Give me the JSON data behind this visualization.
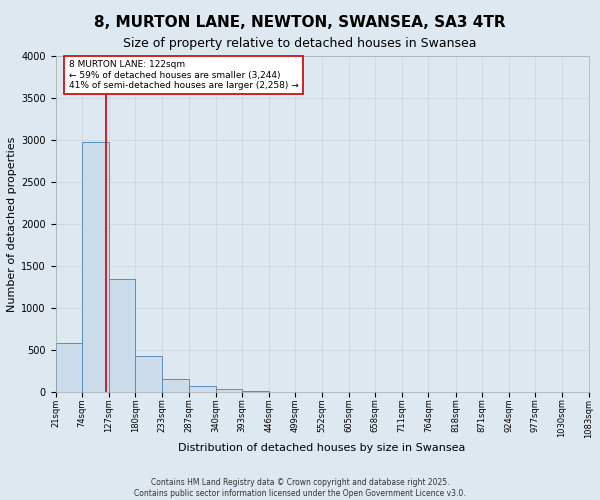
{
  "title": "8, MURTON LANE, NEWTON, SWANSEA, SA3 4TR",
  "subtitle": "Size of property relative to detached houses in Swansea",
  "xlabel": "Distribution of detached houses by size in Swansea",
  "ylabel": "Number of detached properties",
  "bin_edges": [
    21,
    74,
    127,
    180,
    233,
    287,
    340,
    393,
    446,
    499,
    552,
    605,
    658,
    711,
    764,
    818,
    871,
    924,
    977,
    1030,
    1083
  ],
  "bar_heights": [
    580,
    2980,
    1350,
    430,
    160,
    75,
    40,
    15,
    5,
    3,
    2,
    1,
    1,
    0,
    0,
    0,
    0,
    0,
    0,
    0
  ],
  "bar_color": "#cddceb",
  "bar_edgecolor": "#5b8db8",
  "grid_color": "#c8d4e0",
  "property_line_x": 122,
  "property_line_color": "#cc0000",
  "annotation_text": "8 MURTON LANE: 122sqm\n← 59% of detached houses are smaller (3,244)\n41% of semi-detached houses are larger (2,258) →",
  "annotation_box_color": "#cc0000",
  "annotation_bg": "#ffffff",
  "ylim": [
    0,
    4000
  ],
  "footer_line1": "Contains HM Land Registry data © Crown copyright and database right 2025.",
  "footer_line2": "Contains public sector information licensed under the Open Government Licence v3.0.",
  "background_color": "#dde8f0",
  "plot_bg_color": "#dde8f0",
  "title_fontsize": 11,
  "subtitle_fontsize": 9,
  "ylabel_fontsize": 8,
  "xlabel_fontsize": 8,
  "tick_fontsize": 6,
  "ytick_fontsize": 7,
  "footer_fontsize": 5.5,
  "annot_fontsize": 6.5
}
